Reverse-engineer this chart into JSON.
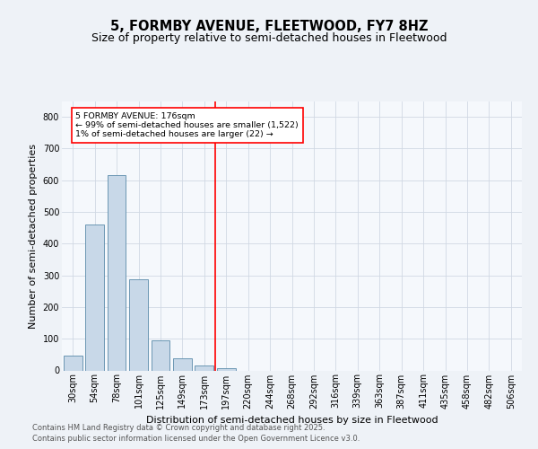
{
  "title1": "5, FORMBY AVENUE, FLEETWOOD, FY7 8HZ",
  "title2": "Size of property relative to semi-detached houses in Fleetwood",
  "xlabel": "Distribution of semi-detached houses by size in Fleetwood",
  "ylabel": "Number of semi-detached properties",
  "categories": [
    "30sqm",
    "54sqm",
    "78sqm",
    "101sqm",
    "125sqm",
    "149sqm",
    "173sqm",
    "197sqm",
    "220sqm",
    "244sqm",
    "268sqm",
    "292sqm",
    "316sqm",
    "339sqm",
    "363sqm",
    "387sqm",
    "411sqm",
    "435sqm",
    "458sqm",
    "482sqm",
    "506sqm"
  ],
  "values": [
    46,
    461,
    616,
    289,
    95,
    37,
    15,
    8,
    0,
    0,
    0,
    0,
    0,
    0,
    0,
    0,
    0,
    0,
    0,
    0,
    0
  ],
  "bar_color": "#c8d8e8",
  "bar_edge_color": "#5a8aaa",
  "vline_x": 6.5,
  "annotation_line1": "5 FORMBY AVENUE: 176sqm",
  "annotation_line2": "← 99% of semi-detached houses are smaller (1,522)",
  "annotation_line3": "1% of semi-detached houses are larger (22) →",
  "ylim": [
    0,
    850
  ],
  "yticks": [
    0,
    100,
    200,
    300,
    400,
    500,
    600,
    700,
    800
  ],
  "footer1": "Contains HM Land Registry data © Crown copyright and database right 2025.",
  "footer2": "Contains public sector information licensed under the Open Government Licence v3.0.",
  "bg_color": "#eef2f7",
  "plot_bg_color": "#f5f8fc",
  "grid_color": "#d0d8e4",
  "title1_fontsize": 10.5,
  "title2_fontsize": 9,
  "axis_fontsize": 8,
  "tick_fontsize": 7,
  "footer_fontsize": 6
}
